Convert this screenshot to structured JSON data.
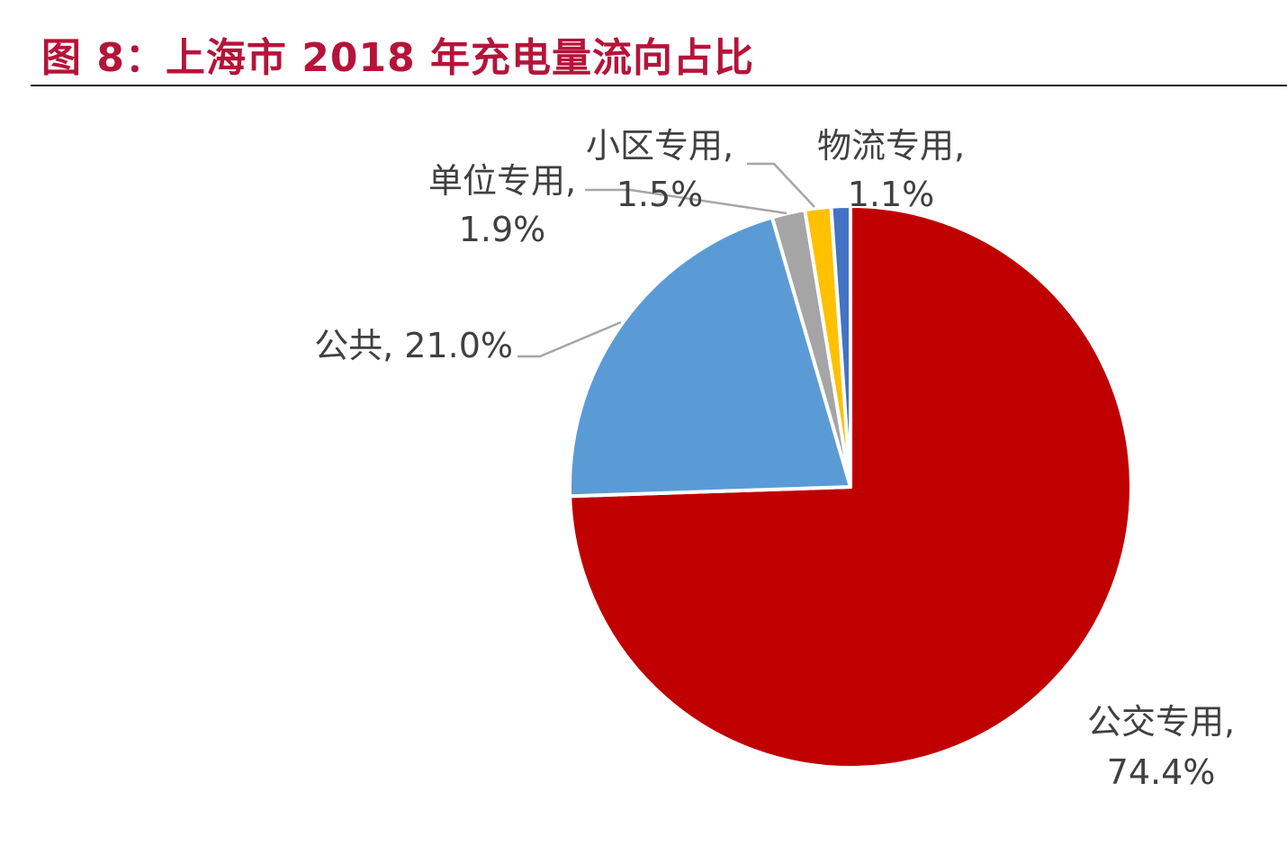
{
  "figure_title": "图 8：上海市 2018 年充电量流向占比",
  "chart_data": {
    "type": "pie",
    "title": "图 8：上海市 2018 年充电量流向占比",
    "slices": [
      {
        "label": "公交专用",
        "value": 74.4,
        "value_label": "74.4%",
        "color": "#c00000"
      },
      {
        "label": "公共",
        "value": 21.0,
        "value_label": "21.0%",
        "color": "#5b9bd5"
      },
      {
        "label": "单位专用",
        "value": 1.9,
        "value_label": "1.9%",
        "color": "#a5a5a5"
      },
      {
        "label": "小区专用",
        "value": 1.5,
        "value_label": "1.5%",
        "color": "#ffc000"
      },
      {
        "label": "物流专用",
        "value": 1.1,
        "value_label": "1.1%",
        "color": "#4472c4"
      }
    ],
    "start_angle": "12 o'clock",
    "direction": "clockwise",
    "legend": "none",
    "data_labels": "outside with leader lines"
  },
  "labels": {
    "bus": {
      "line1": "公交专用,",
      "line2": "74.4%"
    },
    "public": {
      "line1": "公共, 21.0%"
    },
    "unit": {
      "line1": "单位专用,",
      "line2": "1.9%"
    },
    "community": {
      "line1": "小区专用,",
      "line2": "1.5%"
    },
    "logistics": {
      "line1": "物流专用,",
      "line2": "1.1%"
    }
  }
}
